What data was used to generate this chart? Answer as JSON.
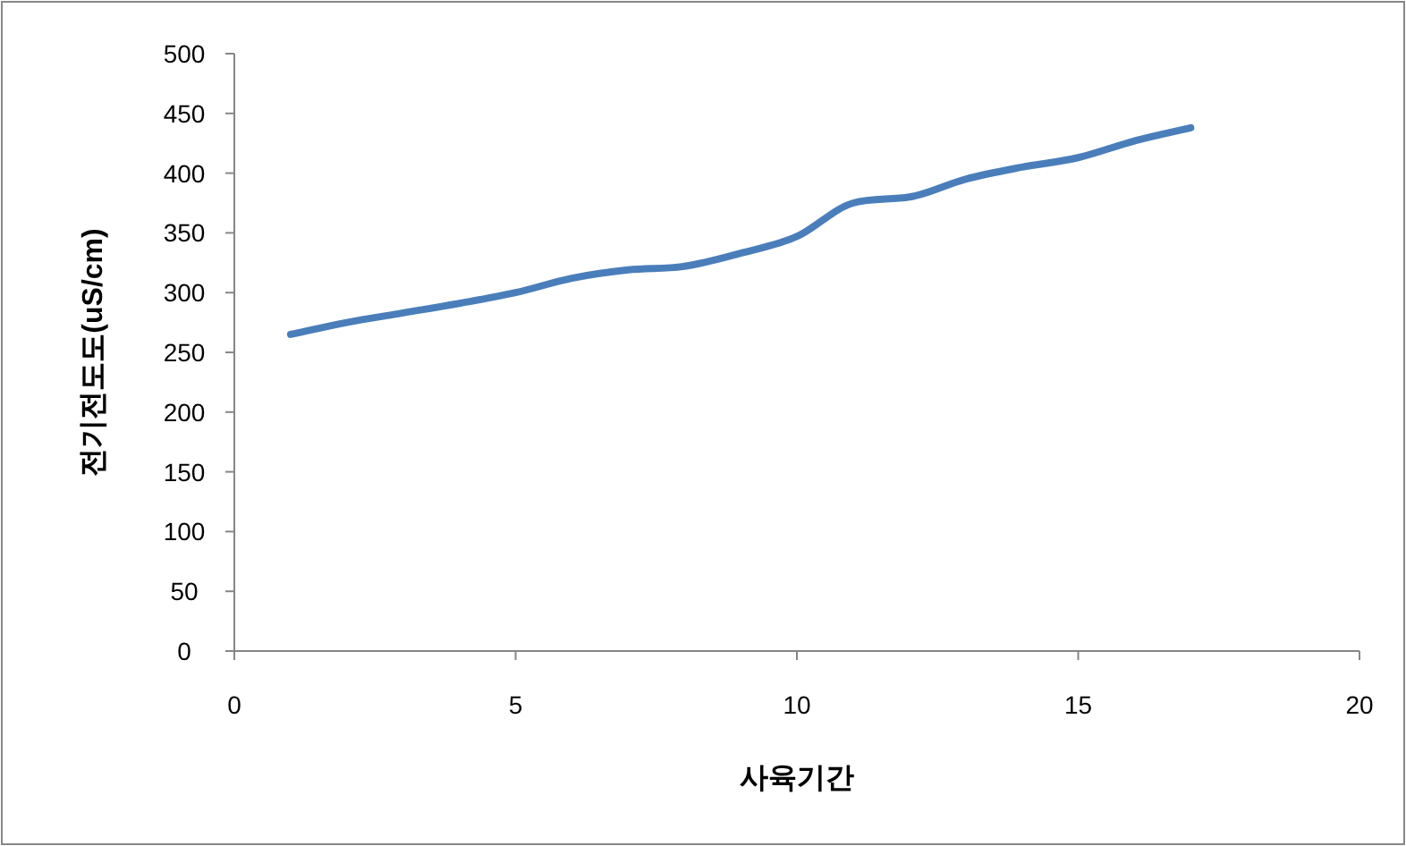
{
  "chart_data": {
    "type": "line",
    "xlabel": "사육기간",
    "ylabel": "전기전도도(uS/cm)",
    "x": [
      1,
      2,
      3,
      4,
      5,
      6,
      7,
      8,
      9,
      10,
      11,
      12,
      13,
      14,
      15,
      16,
      17
    ],
    "series": [
      {
        "color": "#4a7ebb",
        "values": [
          265,
          275,
          283,
          291,
          300,
          312,
          319,
          322,
          333,
          347,
          375,
          380,
          395,
          405,
          413,
          427,
          438
        ]
      }
    ],
    "xlim": [
      0,
      20
    ],
    "xticks": [
      0,
      5,
      10,
      15,
      20
    ],
    "ylim": [
      0,
      500
    ],
    "yticks": [
      0,
      50,
      100,
      150,
      200,
      250,
      300,
      350,
      400,
      450,
      500
    ],
    "grid": false
  }
}
